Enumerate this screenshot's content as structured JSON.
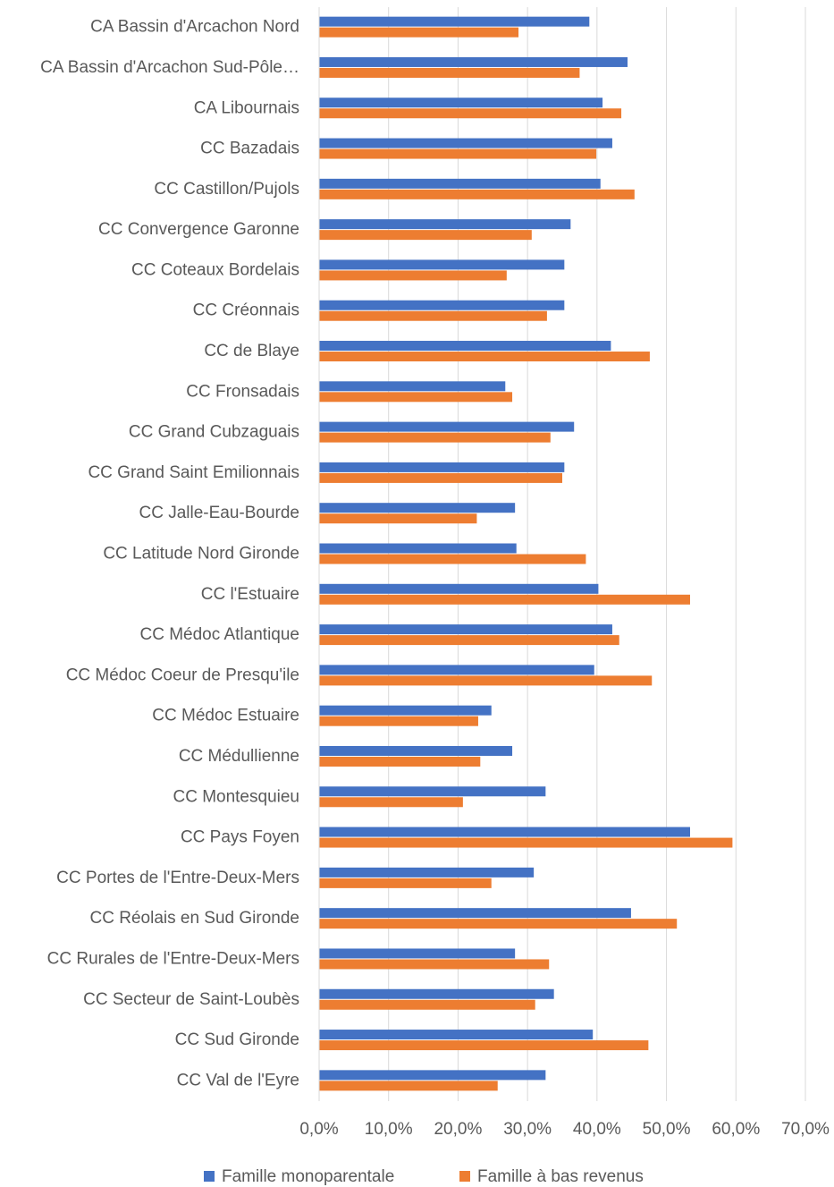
{
  "chart_data": {
    "type": "hbar",
    "categories": [
      "CA Bassin d'Arcachon Nord",
      "CA Bassin d'Arcachon Sud-Pôle…",
      "CA Libournais",
      "CC Bazadais",
      "CC Castillon/Pujols",
      "CC Convergence Garonne",
      "CC Coteaux Bordelais",
      "CC Créonnais",
      "CC de Blaye",
      "CC Fronsadais",
      "CC Grand Cubzaguais",
      "CC Grand Saint Emilionnais",
      "CC Jalle-Eau-Bourde",
      "CC Latitude Nord Gironde",
      "CC l'Estuaire",
      "CC Médoc Atlantique",
      "CC Médoc Coeur de Presqu'ile",
      "CC Médoc Estuaire",
      "CC Médullienne",
      "CC Montesquieu",
      "CC Pays Foyen",
      "CC Portes de l'Entre-Deux-Mers",
      "CC Réolais en Sud Gironde",
      "CC Rurales de l'Entre-Deux-Mers",
      "CC Secteur de Saint-Loubès",
      "CC Sud Gironde",
      "CC Val de l'Eyre"
    ],
    "series": [
      {
        "name": "Famille monoparentale",
        "color": "#4472c4",
        "values": [
          38.9,
          44.4,
          40.8,
          42.2,
          40.5,
          36.2,
          35.3,
          35.3,
          42.0,
          26.8,
          36.7,
          35.3,
          28.2,
          28.4,
          40.2,
          42.2,
          39.6,
          24.8,
          27.8,
          32.6,
          53.4,
          30.9,
          44.9,
          28.2,
          33.8,
          39.4,
          32.6
        ]
      },
      {
        "name": "Famille à bas revenus",
        "color": "#ed7d31",
        "values": [
          28.7,
          37.5,
          43.5,
          39.9,
          45.4,
          30.6,
          27.0,
          32.8,
          47.6,
          27.8,
          33.3,
          35.0,
          22.7,
          38.4,
          53.4,
          43.2,
          47.9,
          22.9,
          23.2,
          20.7,
          59.5,
          24.8,
          51.5,
          33.1,
          31.1,
          47.4,
          25.7
        ]
      }
    ],
    "xlim": [
      0,
      70
    ],
    "xticks": [
      {
        "value": 0,
        "label": "0,0%"
      },
      {
        "value": 10,
        "label": "10,0%"
      },
      {
        "value": 20,
        "label": "20,0%"
      },
      {
        "value": 30,
        "label": "30,0%"
      },
      {
        "value": 40,
        "label": "40,0%"
      },
      {
        "value": 50,
        "label": "50,0%"
      },
      {
        "value": 60,
        "label": "60,0%"
      },
      {
        "value": 70,
        "label": "70,0%"
      }
    ],
    "grid": true,
    "legend": "bottom"
  }
}
